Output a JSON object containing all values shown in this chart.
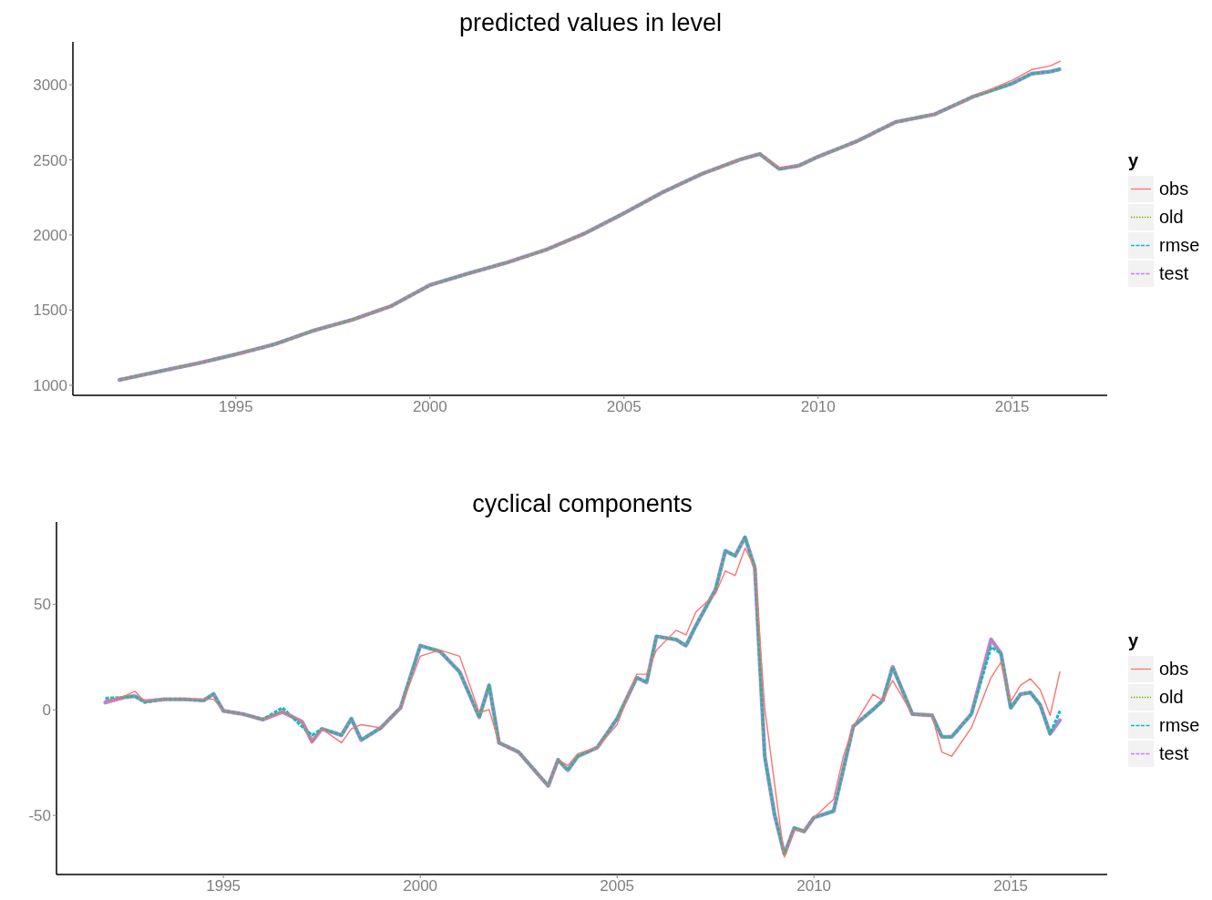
{
  "chart_data": [
    {
      "type": "line",
      "title": "predicted values in level",
      "legend_title": "y",
      "legend": "right",
      "grid": false,
      "marker": "none",
      "x": [
        1992,
        1993,
        1994,
        1995,
        1996,
        1997,
        1998,
        1999,
        2000,
        2001,
        2002,
        2003,
        2004,
        2005,
        2006,
        2007,
        2008,
        2008.5,
        2009,
        2009.5,
        2010,
        2011,
        2012,
        2013,
        2014,
        2015,
        2015.5,
        2016,
        2016.25
      ],
      "xlim": [
        1990.8,
        2017.45
      ],
      "xticks": [
        1995,
        2000,
        2005,
        2010,
        2015
      ],
      "ylim": [
        933,
        3285
      ],
      "yticks": [
        1000,
        1500,
        2000,
        2500,
        3000
      ],
      "series": [
        {
          "name": "obs",
          "color": "#f8766d",
          "line_style": "solid",
          "values": [
            1036,
            1091,
            1145,
            1206,
            1273,
            1364,
            1436,
            1527,
            1667,
            1745,
            1818,
            1903,
            2012,
            2145,
            2285,
            2406,
            2503,
            2539,
            2448,
            2461,
            2521,
            2624,
            2752,
            2803,
            2921,
            3030,
            3100,
            3127,
            3158
          ]
        },
        {
          "name": "old",
          "color": "#7cae00",
          "line_style": "dotted",
          "values": [
            1036,
            1091,
            1145,
            1206,
            1273,
            1364,
            1436,
            1527,
            1667,
            1745,
            1818,
            1903,
            2012,
            2145,
            2285,
            2406,
            2503,
            2539,
            2440,
            2461,
            2521,
            2624,
            2752,
            2803,
            2921,
            3008,
            3073,
            3088,
            3105
          ]
        },
        {
          "name": "rmse",
          "color": "#00bfc4",
          "line_style": "dashed",
          "values": [
            1036,
            1091,
            1145,
            1206,
            1273,
            1364,
            1436,
            1527,
            1667,
            1745,
            1818,
            1903,
            2012,
            2145,
            2285,
            2406,
            2503,
            2539,
            2440,
            2461,
            2521,
            2624,
            2752,
            2803,
            2921,
            3008,
            3073,
            3088,
            3105
          ]
        },
        {
          "name": "test",
          "color": "#c77cff",
          "line_style": "dashed",
          "values": [
            1036,
            1091,
            1145,
            1206,
            1273,
            1364,
            1436,
            1527,
            1667,
            1745,
            1818,
            1903,
            2012,
            2145,
            2285,
            2406,
            2503,
            2539,
            2440,
            2461,
            2521,
            2624,
            2752,
            2803,
            2921,
            3008,
            3073,
            3088,
            3105
          ]
        }
      ]
    },
    {
      "type": "line",
      "title": "cyclical components",
      "legend_title": "y",
      "legend": "right",
      "grid": false,
      "marker": "none",
      "x": [
        1992,
        1992.5,
        1992.75,
        1993,
        1993.5,
        1994,
        1994.5,
        1994.75,
        1995,
        1995.5,
        1996,
        1996.5,
        1997,
        1997.25,
        1997.5,
        1998,
        1998.25,
        1998.5,
        1999,
        1999.5,
        2000,
        2000.5,
        2001,
        2001.5,
        2001.75,
        2002,
        2002.5,
        2003,
        2003.25,
        2003.5,
        2003.75,
        2004,
        2004.5,
        2005,
        2005.5,
        2005.75,
        2006,
        2006.5,
        2006.75,
        2007,
        2007.5,
        2007.75,
        2008,
        2008.25,
        2008.5,
        2008.75,
        2009,
        2009.25,
        2009.5,
        2009.75,
        2010,
        2010.5,
        2010.75,
        2011,
        2011.5,
        2011.75,
        2012,
        2012.5,
        2013,
        2013.25,
        2013.5,
        2014,
        2014.5,
        2014.75,
        2015,
        2015.25,
        2015.5,
        2015.75,
        2016,
        2016.25
      ],
      "xlim": [
        1990.76,
        2017.45
      ],
      "xticks": [
        1995,
        2000,
        2005,
        2010,
        2015
      ],
      "ylim": [
        -78,
        89
      ],
      "yticks": [
        -50,
        0,
        50
      ],
      "series": [
        {
          "name": "obs",
          "color": "#f8766d",
          "line_style": "solid",
          "values": [
            4.3,
            6.6,
            8.8,
            4,
            4.9,
            5,
            5,
            5,
            -0.5,
            -2,
            -4.6,
            -0.5,
            -5.6,
            -15.6,
            -9,
            -15.6,
            -9,
            -7,
            -8.5,
            1,
            25.4,
            28.3,
            25.4,
            -1.3,
            0.1,
            -15.6,
            -20,
            -30.7,
            -36,
            -23.7,
            -26.4,
            -20.8,
            -17.8,
            -7,
            16.9,
            16.9,
            28.3,
            37.7,
            35.5,
            46.3,
            55,
            65.8,
            63.6,
            76.6,
            67.2,
            1,
            -35,
            -69.8,
            -57,
            -57.6,
            -51,
            -42.4,
            -22,
            -7.8,
            7.4,
            4.5,
            13.9,
            -2,
            -2.6,
            -20,
            -22,
            -8.5,
            15.3,
            22.5,
            3.9,
            11.7,
            14.7,
            9.5,
            -2.6,
            18.2
          ]
        },
        {
          "name": "old",
          "color": "#7cae00",
          "line_style": "dotted",
          "values": [
            4,
            6,
            6.5,
            4,
            5,
            5,
            4.5,
            7.5,
            -0.5,
            -2,
            -4.6,
            -1,
            -5.6,
            -15,
            -9,
            -12,
            -4.2,
            -14.3,
            -8.5,
            1,
            30.4,
            27.7,
            18,
            -3.5,
            11.7,
            -15.6,
            -20,
            -30.7,
            -36,
            -23.7,
            -28.6,
            -22,
            -17.8,
            -4.2,
            15.3,
            13,
            34.8,
            33.3,
            30.4,
            39.8,
            57,
            75.3,
            73,
            81.8,
            67.2,
            -22,
            -49.6,
            -68.4,
            -56,
            -57.6,
            -51,
            -48,
            -28,
            -7.8,
            0.1,
            4.5,
            20.3,
            -2,
            -2.6,
            -12.8,
            -12.8,
            -2,
            33.3,
            26.8,
            0.9,
            7.4,
            8.2,
            2.3,
            -11.3,
            -4.8
          ]
        },
        {
          "name": "rmse",
          "color": "#00bfc4",
          "line_style": "dashed",
          "values": [
            5.5,
            6,
            6.5,
            3.5,
            5,
            5,
            4.5,
            7.5,
            -0.5,
            -2,
            -4.6,
            1,
            -8,
            -12,
            -9,
            -12,
            -4.2,
            -14.3,
            -8.5,
            1,
            30.4,
            27.7,
            18,
            -3.5,
            11.7,
            -15.6,
            -20,
            -30.7,
            -36,
            -23.7,
            -28.6,
            -22,
            -17.8,
            -4.2,
            15.3,
            13,
            34.8,
            33.3,
            30.4,
            39.8,
            57,
            75.3,
            73,
            81.8,
            67.2,
            -22,
            -49.6,
            -68.4,
            -56,
            -57.6,
            -51,
            -48,
            -28,
            -7.8,
            0.1,
            4.5,
            20.3,
            -2,
            -2.6,
            -12.8,
            -12.8,
            -2,
            29.7,
            26.8,
            0.9,
            7.4,
            8.2,
            2.3,
            -11.3,
            -0.5
          ]
        },
        {
          "name": "test",
          "color": "#c77cff",
          "line_style": "dashed",
          "values": [
            3.5,
            6,
            6.5,
            4,
            5,
            5,
            4.5,
            7.5,
            -0.5,
            -2,
            -4.6,
            -1,
            -5.6,
            -15,
            -9,
            -12,
            -4.2,
            -14.3,
            -8.5,
            1,
            30.4,
            27.7,
            18,
            -3.5,
            11.7,
            -15.6,
            -20,
            -30.7,
            -36,
            -23.7,
            -28.6,
            -22,
            -17.8,
            -4.2,
            15.3,
            13,
            34.8,
            33.3,
            30.4,
            39.8,
            57,
            75.3,
            73,
            81.8,
            67.2,
            -22,
            -49.6,
            -68.4,
            -56,
            -57.6,
            -51,
            -48,
            -28,
            -7.8,
            0.1,
            4.5,
            20.3,
            -2,
            -2.6,
            -12.8,
            -12.8,
            -2,
            33.3,
            26.8,
            0.9,
            7.4,
            8.2,
            2.3,
            -11.3,
            -4.8
          ]
        }
      ]
    }
  ]
}
